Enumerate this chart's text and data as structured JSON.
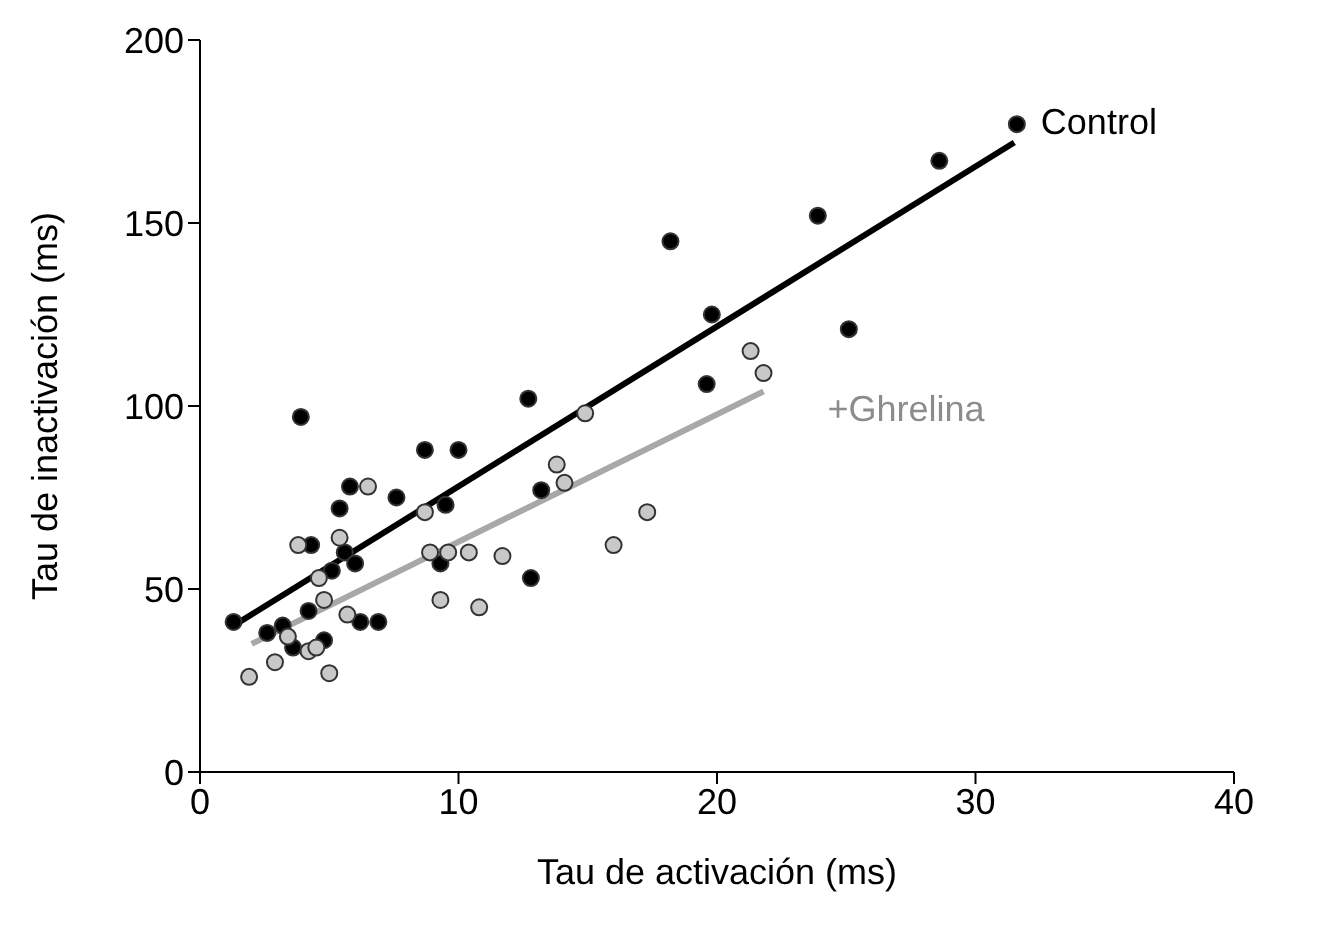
{
  "chart_data": {
    "type": "scatter",
    "xlabel": "Tau de activación  (ms)",
    "ylabel": "Tau de inactivación (ms)",
    "xlim": [
      0,
      40
    ],
    "xticks": [
      0,
      10,
      20,
      30,
      40
    ],
    "ylim": [
      0,
      200
    ],
    "yticks": [
      0,
      50,
      100,
      150,
      200
    ],
    "series": [
      {
        "name": "Control",
        "marker": "circle",
        "color": "#000000",
        "x": [
          1.3,
          2.6,
          3.2,
          3.6,
          3.9,
          4.2,
          4.3,
          4.8,
          5.0,
          5.1,
          5.4,
          5.6,
          5.8,
          6.0,
          6.2,
          6.9,
          7.6,
          8.7,
          9.3,
          9.5,
          10.0,
          12.7,
          12.8,
          13.2,
          18.2,
          19.6,
          19.8,
          23.9,
          25.1,
          28.6,
          31.6
        ],
        "values": [
          41,
          38,
          40,
          34,
          97,
          44,
          62,
          36,
          null,
          55,
          72,
          60,
          78,
          57,
          41,
          41,
          75,
          88,
          57,
          73,
          88,
          102,
          53,
          77,
          145,
          106,
          125,
          152,
          121,
          167,
          177
        ]
      },
      {
        "name": "+Ghrelina",
        "marker": "circle",
        "color": "#c8c8c8",
        "x": [
          1.9,
          2.9,
          3.4,
          3.8,
          4.2,
          4.5,
          4.6,
          4.8,
          5.0,
          5.4,
          5.7,
          6.5,
          8.7,
          8.9,
          9.3,
          9.6,
          10.4,
          10.8,
          11.7,
          13.8,
          14.1,
          14.9,
          16.0,
          17.3,
          21.3,
          21.8
        ],
        "values": [
          26,
          30,
          37,
          62,
          33,
          34,
          53,
          47,
          27,
          64,
          43,
          78,
          71,
          60,
          47,
          60,
          60,
          45,
          59,
          84,
          79,
          98,
          62,
          71,
          115,
          109
        ]
      },
      {
        "type": "line",
        "marker": "none",
        "color": "#000000",
        "x": [
          1.3,
          31.5
        ],
        "values": [
          40,
          172
        ]
      },
      {
        "type": "line",
        "marker": "none",
        "color": "#a8a8a8",
        "x": [
          2.0,
          21.8
        ],
        "values": [
          35,
          104
        ]
      }
    ]
  }
}
